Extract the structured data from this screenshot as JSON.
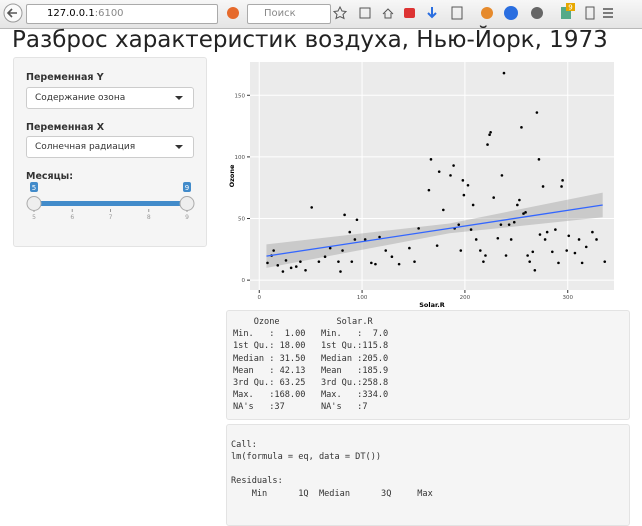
{
  "browser": {
    "url_host": "127.0.0.1",
    "url_port": ":6100",
    "search_placeholder": "Поиск",
    "badge": "9"
  },
  "title": "Разброс характеристик воздуха, Нью-Йорк, 1973",
  "sidebar": {
    "y_label": "Переменная Y",
    "y_value": "Содержание озона",
    "x_label": "Переменная X",
    "x_value": "Солнечная радиация",
    "months_label": "Месяцы:",
    "slider": {
      "min": 5,
      "max": 9,
      "values": [
        5,
        9
      ],
      "ticks": [
        5,
        6,
        7,
        8,
        9
      ]
    }
  },
  "chart_data": {
    "type": "scatter",
    "x_label": "Solar.R",
    "y_label": "Ozone",
    "x": [
      8,
      12,
      14,
      18,
      23,
      26,
      31,
      36,
      40,
      45,
      51,
      58,
      64,
      69,
      77,
      79,
      81,
      83,
      88,
      90,
      93,
      95,
      103,
      109,
      113,
      117,
      123,
      129,
      136,
      146,
      151,
      155,
      165,
      167,
      173,
      175,
      179,
      186,
      189,
      190,
      194,
      196,
      198,
      199,
      203,
      206,
      208,
      211,
      215,
      218,
      220,
      222,
      224,
      225,
      228,
      232,
      235,
      236,
      238,
      240,
      243,
      245,
      248,
      251,
      253,
      255,
      257,
      259,
      261,
      263,
      266,
      268,
      270,
      272,
      273,
      276,
      278,
      280,
      285,
      288,
      291,
      294,
      295,
      299,
      301,
      307,
      311,
      314,
      318,
      324,
      328,
      336
    ],
    "y": [
      14,
      20,
      24,
      12,
      7,
      16,
      10,
      11,
      15,
      8,
      59,
      15,
      19,
      26,
      15,
      7,
      24,
      53,
      39,
      15,
      33,
      49,
      33,
      14,
      13,
      35,
      24,
      19,
      13,
      26,
      15,
      42,
      73,
      98,
      28,
      88,
      57,
      85,
      93,
      42,
      45,
      24,
      81,
      69,
      77,
      41,
      61,
      33,
      24,
      15,
      20,
      110,
      118,
      120,
      67,
      34,
      45,
      85,
      168,
      20,
      45,
      33,
      47,
      61,
      65,
      124,
      54,
      55,
      20,
      15,
      23,
      8,
      136,
      98,
      37,
      76,
      33,
      39,
      23,
      41,
      14,
      76,
      81,
      24,
      36,
      22,
      33,
      14,
      27,
      39,
      33,
      15
    ],
    "xlim": [
      -9,
      345
    ],
    "ylim": [
      -8,
      177
    ],
    "xticks": [
      0,
      100,
      200,
      300
    ],
    "yticks": [
      0,
      50,
      100,
      150
    ],
    "color": "#000000",
    "grid": true,
    "fit": {
      "x": [
        7,
        185,
        334
      ],
      "y": [
        19.5,
        42,
        61
      ],
      "lower": [
        10,
        38,
        51
      ],
      "upper": [
        29,
        46,
        71
      ],
      "color": "#3366ff"
    }
  },
  "summary": {
    "lines": [
      "    Ozone           Solar.R",
      "Min.   :  1.00   Min.   :  7.0",
      "1st Qu.: 18.00   1st Qu.:115.8",
      "Median : 31.50   Median :205.0",
      "Mean   : 42.13   Mean   :185.9",
      "3rd Qu.: 63.25   3rd Qu.:258.8",
      "Max.   :168.00   Max.   :334.0",
      "NA's   :37       NA's   :7"
    ]
  },
  "model": {
    "lines": [
      "Call:",
      "lm(formula = eq, data = DT())",
      "Residuals:",
      "    Min      1Q  Median      3Q     Max"
    ]
  }
}
